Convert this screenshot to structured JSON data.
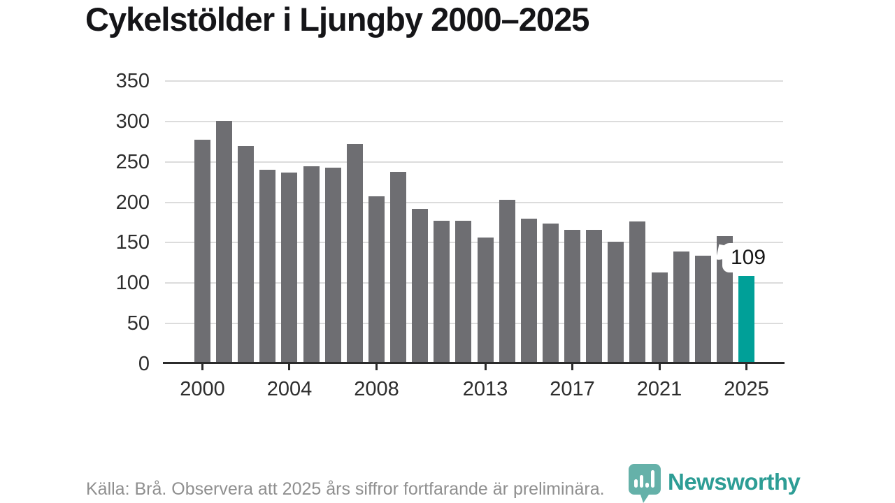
{
  "title": "Cykelstölder i Ljungby 2000–2025",
  "chart_data": {
    "type": "bar",
    "title": "Cykelstölder i Ljungby 2000–2025",
    "x": [
      2000,
      2001,
      2002,
      2003,
      2004,
      2005,
      2006,
      2007,
      2008,
      2009,
      2010,
      2011,
      2012,
      2013,
      2014,
      2015,
      2016,
      2017,
      2018,
      2019,
      2020,
      2021,
      2022,
      2023,
      2024,
      2025
    ],
    "values": [
      277,
      301,
      270,
      240,
      237,
      245,
      243,
      272,
      207,
      238,
      192,
      177,
      177,
      156,
      203,
      180,
      174,
      166,
      166,
      151,
      176,
      113,
      139,
      134,
      158,
      109
    ],
    "ylim": [
      0,
      350
    ],
    "yticks": [
      0,
      50,
      100,
      150,
      200,
      250,
      300,
      350
    ],
    "xticks": [
      2000,
      2004,
      2008,
      2013,
      2017,
      2021,
      2025
    ],
    "grid": "horizontal",
    "legend": "none",
    "bar_color": "#6e6e72",
    "highlight_index": 25,
    "highlight_color": "#00a098",
    "highlight_label": "109"
  },
  "footer": {
    "source_note": "Källa: Brå. Observera att 2025 års siffror fortfarande är preliminära."
  },
  "logo": {
    "wordmark": "Newsworthy",
    "icon": "newsworthy-pin-barchart-icon",
    "color": "#2d9d95"
  }
}
